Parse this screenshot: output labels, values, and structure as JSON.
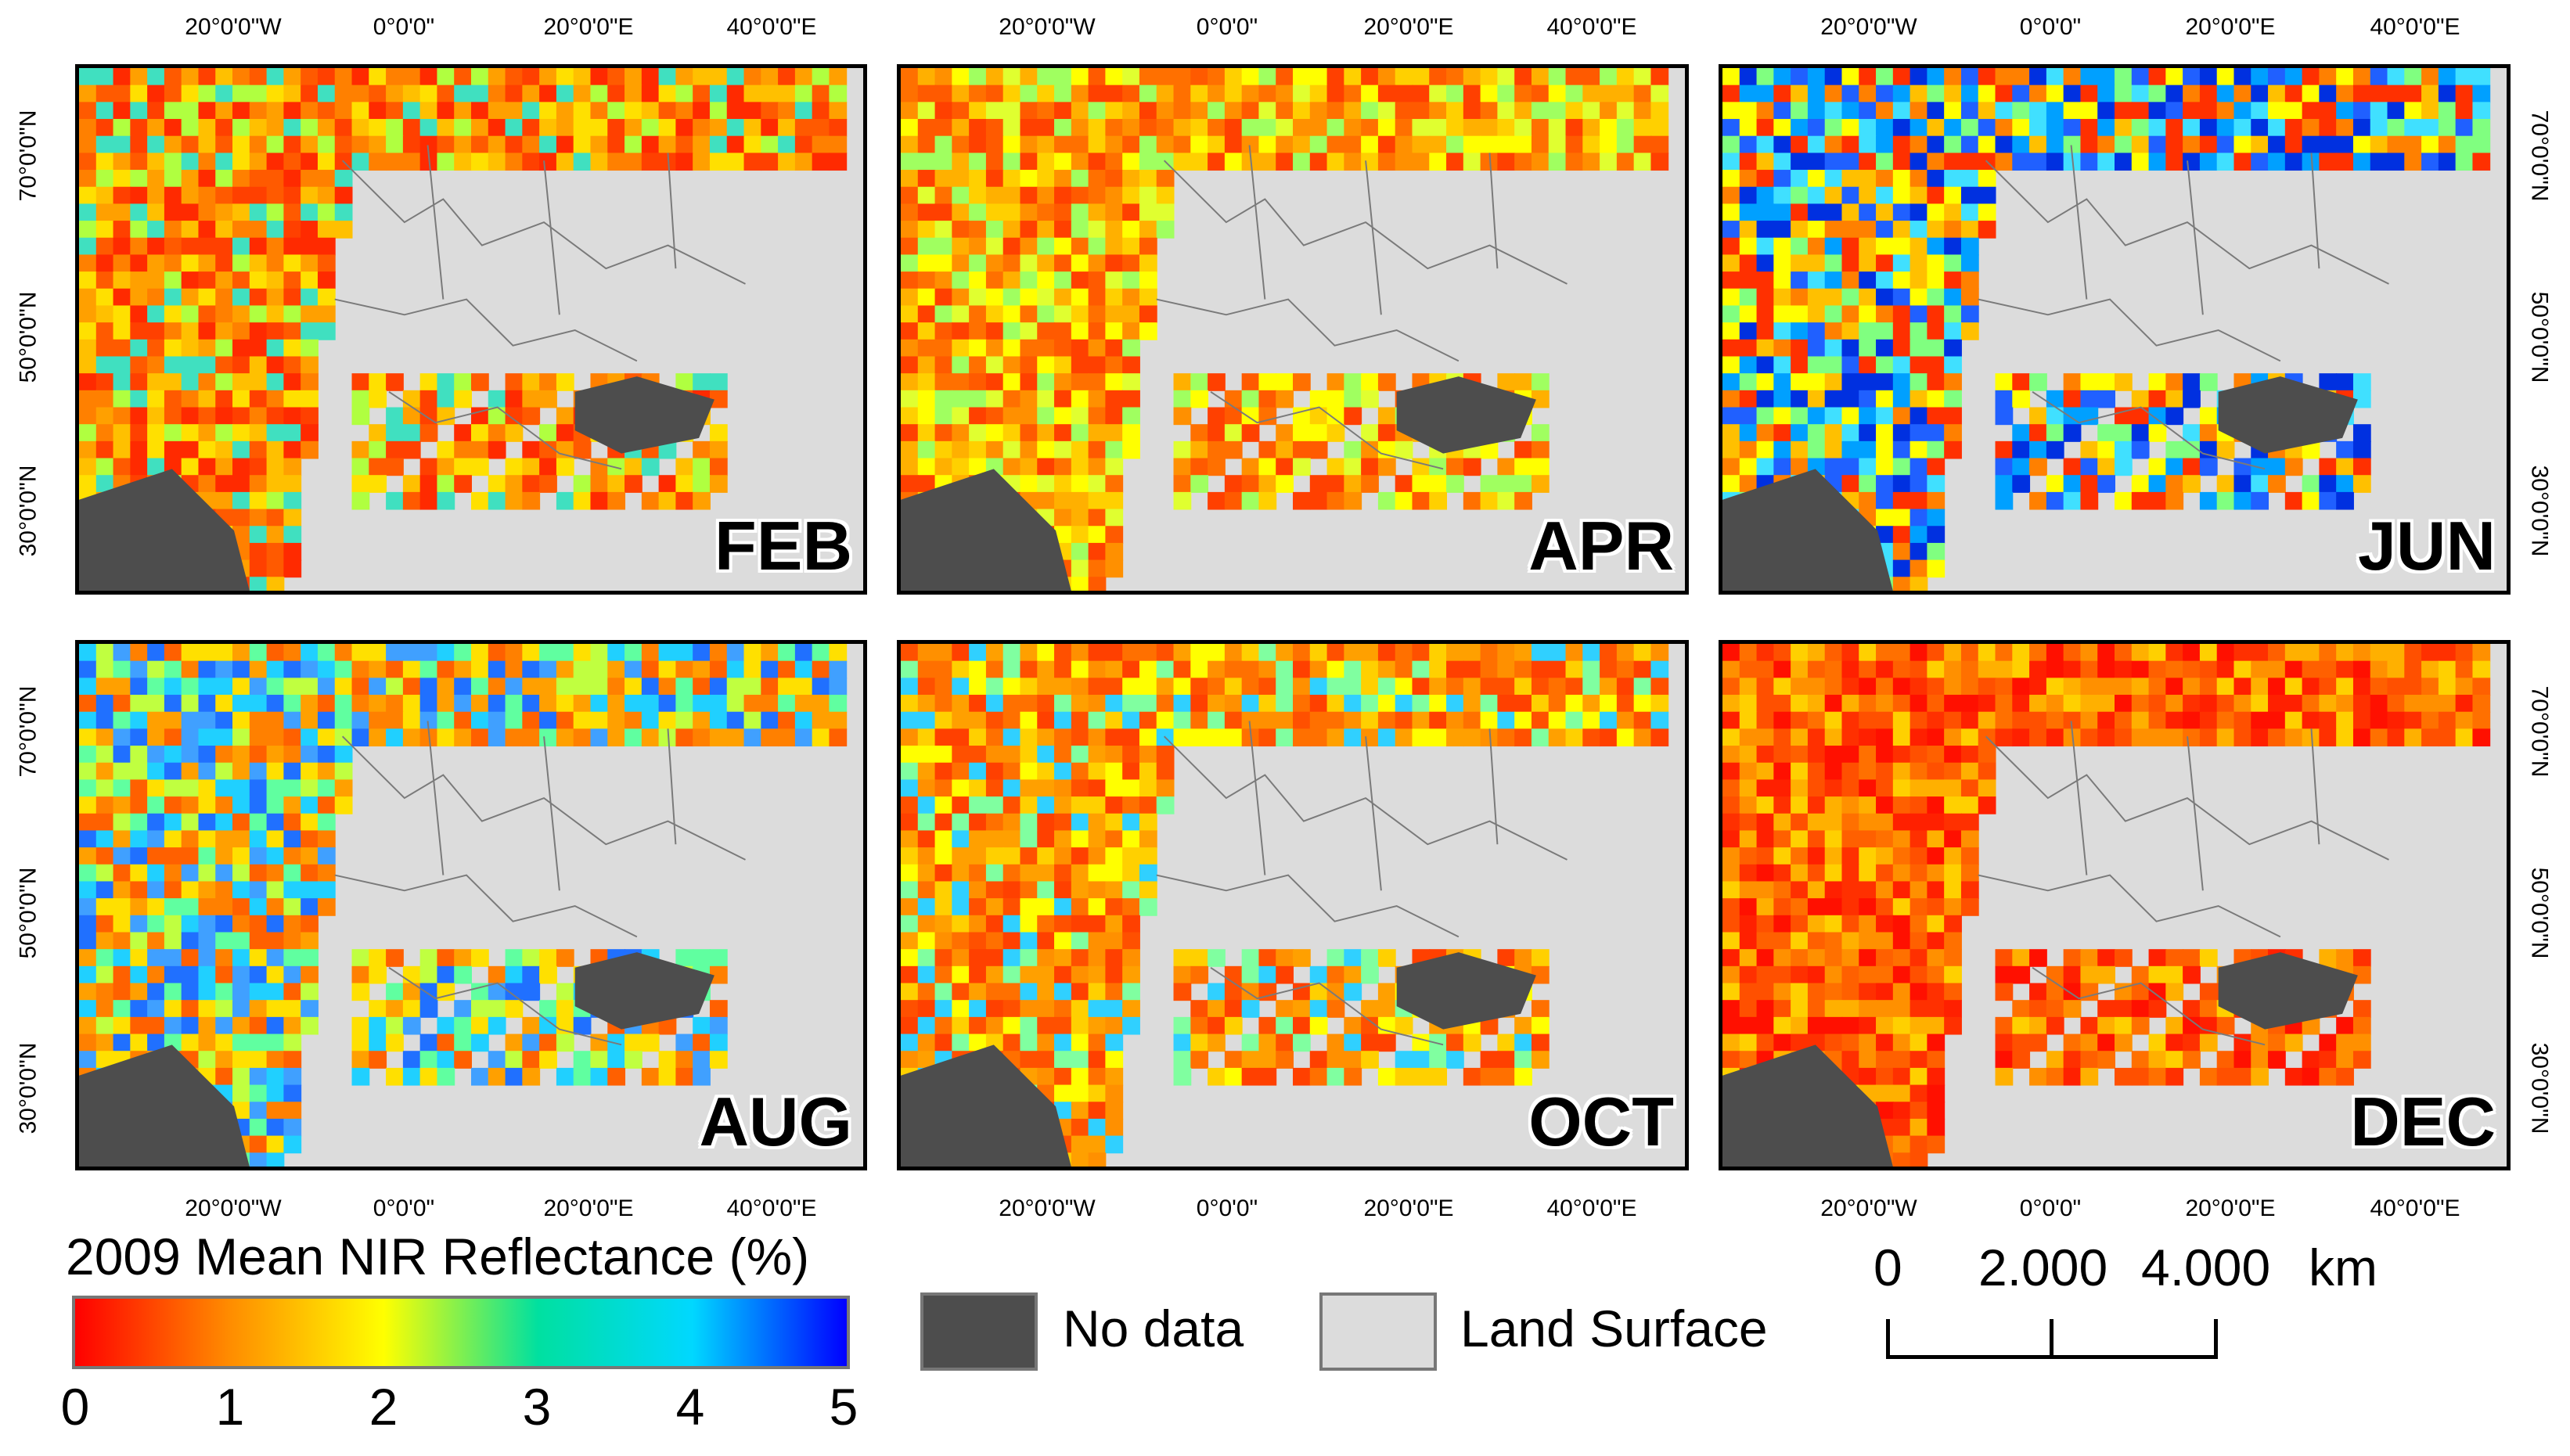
{
  "panels": [
    {
      "month": "FEB"
    },
    {
      "month": "APR"
    },
    {
      "month": "JUN"
    },
    {
      "month": "AUG"
    },
    {
      "month": "OCT"
    },
    {
      "month": "DEC"
    }
  ],
  "lon_labels": [
    "20°0'0\"W",
    "0°0'0\"",
    "20°0'0\"E",
    "40°0'0\"E"
  ],
  "lat_labels": [
    "70°0'0\"N",
    "50°0'0\"N",
    "30°0'0\"N"
  ],
  "legend": {
    "title": "2009 Mean NIR Reflectance (%)",
    "ticks": [
      "0",
      "1",
      "2",
      "3",
      "4",
      "5"
    ],
    "colors": [
      "#ff0000",
      "#ff8c00",
      "#ffff00",
      "#00e0a0",
      "#00d8ff",
      "#0000ff"
    ],
    "no_data": "No data",
    "no_data_color": "#4d4d4d",
    "land": "Land Surface",
    "land_color": "#dcdcdc"
  },
  "scalebar": {
    "labels": [
      "0",
      "2.000",
      "4.000"
    ],
    "unit": "km"
  }
}
